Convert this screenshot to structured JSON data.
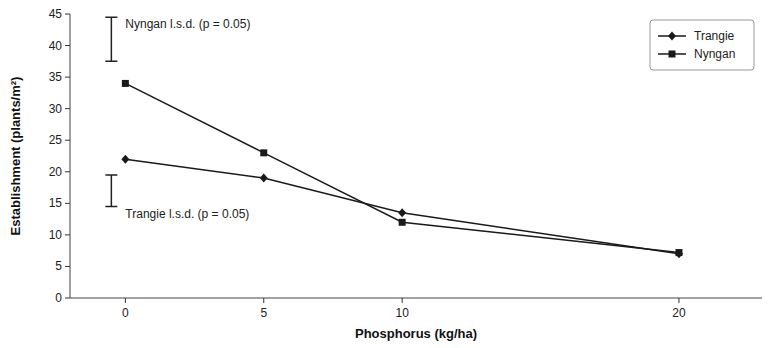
{
  "chart_data": {
    "type": "line",
    "x": [
      0,
      5,
      10,
      20
    ],
    "series": [
      {
        "name": "Trangie",
        "color": "#1a1a1a",
        "marker": "diamond",
        "values": [
          22,
          19,
          13.5,
          7
        ]
      },
      {
        "name": "Nyngan",
        "color": "#1a1a1a",
        "marker": "square",
        "values": [
          34,
          23,
          12,
          7.2
        ]
      }
    ],
    "annotations": [
      {
        "text": "Nyngan l.s.d. (p = 0.05)",
        "value": 41,
        "error": 3.5
      },
      {
        "text": "Trangie l.s.d. (p = 0.05)",
        "value": 17,
        "error": 2.5
      }
    ],
    "xlabel": "Phosphorus (kg/ha)",
    "ylabel": "Establishment (plants/m²)",
    "xlim": [
      -2,
      23
    ],
    "ylim": [
      0,
      45
    ],
    "xticks": [
      0,
      5,
      10,
      20
    ],
    "yticks": [
      0,
      5,
      10,
      15,
      20,
      25,
      30,
      35,
      40,
      45
    ],
    "grid": false,
    "legend": "upper right"
  }
}
